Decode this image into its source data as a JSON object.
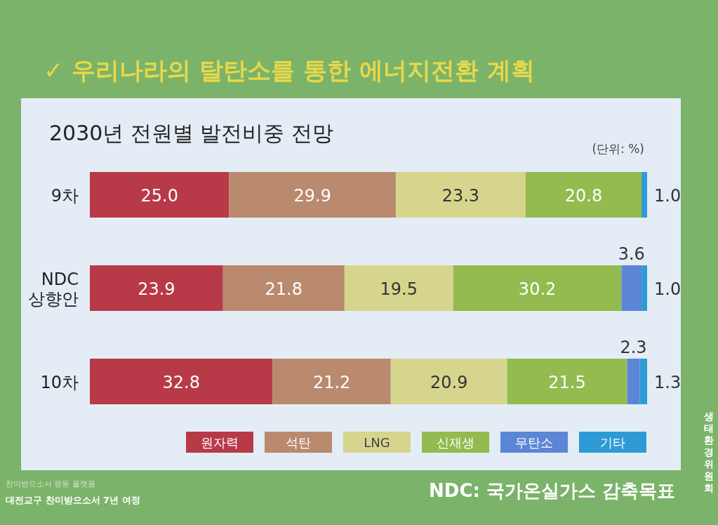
{
  "chart_data": {
    "type": "bar",
    "orientation": "horizontal",
    "stacked": true,
    "legend": "bottom",
    "tick_labels": "y",
    "title": "✓ 우리나라의 탈탄소를 통한 에너지전환 계획",
    "subtitle": "2030년 전원별 발전비중 전망",
    "categories": [
      "9차",
      "NDC 상향안",
      "10차"
    ],
    "series": [
      {
        "name": "원자력",
        "color": "#b83a48",
        "values": [
          25.0,
          23.9,
          32.8
        ],
        "value_labels": [
          "25.0",
          "23.9",
          "32.8"
        ]
      },
      {
        "name": "석탄",
        "color": "#b98a6e",
        "values": [
          29.9,
          21.8,
          21.2
        ],
        "value_labels": [
          "29.9",
          "21.8",
          "21.2"
        ]
      },
      {
        "name": "LNG",
        "color": "#d6d58e",
        "values": [
          23.3,
          19.5,
          20.9
        ],
        "value_labels": [
          "23.3",
          "19.5",
          "20.9"
        ]
      },
      {
        "name": "신재생",
        "color": "#93bb4f",
        "values": [
          20.8,
          30.2,
          21.5
        ],
        "value_labels": [
          "20.8",
          "30.2",
          "21.5"
        ]
      },
      {
        "name": "무탄소",
        "color": "#5b86d6",
        "values": [
          null,
          3.6,
          2.3
        ],
        "value_labels": [
          null,
          "3.6",
          "2.3"
        ]
      },
      {
        "name": "기타",
        "color": "#2f9bd6",
        "values": [
          1.0,
          1.0,
          1.3
        ],
        "value_labels": [
          "1.0",
          "1.0",
          "1.3"
        ]
      }
    ],
    "annotations": [
      "(단위: %)",
      "NDC: 국가온실가스 감축목표",
      "찬미받으소서 행동 플랫폼",
      "대전교구 찬미받으소서 7년 여정",
      "생태환경위원회"
    ]
  }
}
